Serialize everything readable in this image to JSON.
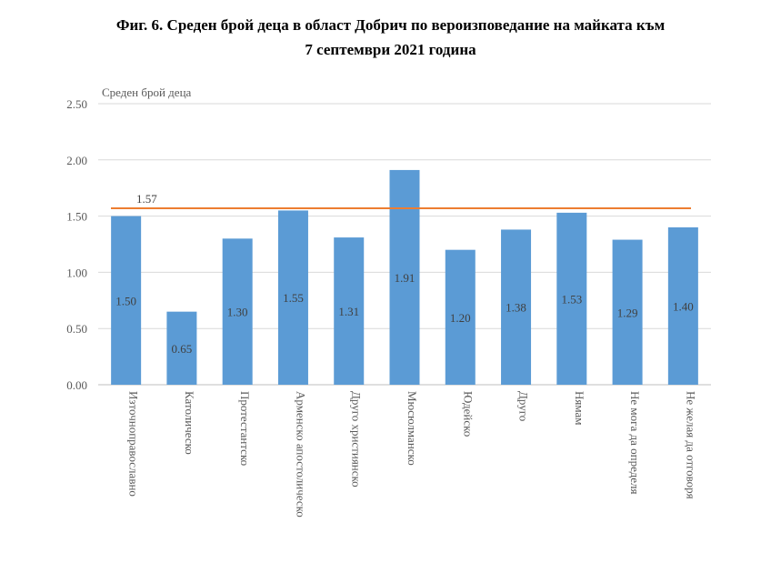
{
  "title": {
    "line1": "Фиг. 6. Среден брой деца в област Добрич по вероизповедание на майката към",
    "line2": "7 септември 2021 година"
  },
  "chart_data": {
    "type": "bar",
    "ylabel": "Среден брой деца",
    "ylim": [
      0,
      2.5
    ],
    "yticks": [
      "0.00",
      "0.50",
      "1.00",
      "1.50",
      "2.00",
      "2.50"
    ],
    "categories": [
      "Източноправославно",
      "Католическо",
      "Протестантско",
      "Арменско апостолическо",
      "Друго християнско",
      "Мюсюлманско",
      "Юдейско",
      "Друго",
      "Нямам",
      "Не мога да определя",
      "Не желая да отговоря"
    ],
    "values": [
      1.5,
      0.65,
      1.3,
      1.55,
      1.31,
      1.91,
      1.2,
      1.38,
      1.53,
      1.29,
      1.4
    ],
    "data_labels": [
      "1.50",
      "0.65",
      "1.30",
      "1.55",
      "1.31",
      "1.91",
      "1.20",
      "1.38",
      "1.53",
      "1.29",
      "1.40"
    ],
    "reference_line": {
      "value": 1.57,
      "label": "1.57"
    },
    "colors": {
      "bar": "#5b9bd5",
      "reference_line": "#ed7d31",
      "grid": "#d9d9d9"
    },
    "grid": true,
    "legend": "none"
  }
}
